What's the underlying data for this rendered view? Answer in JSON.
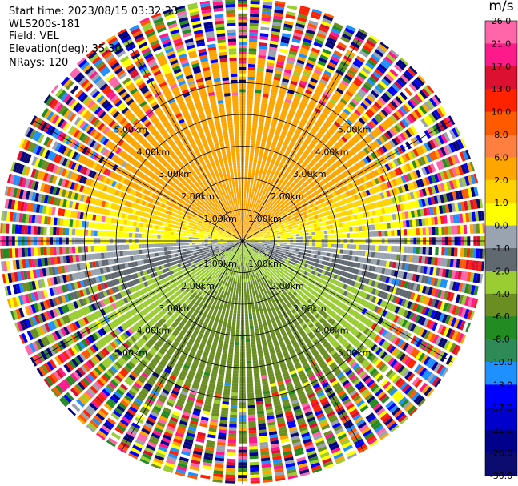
{
  "header": {
    "start_time_label": "Start time:",
    "start_time": "2023/08/15 03:32:33",
    "instrument": "WLS200s-181",
    "field_label": "Field:",
    "field": "VEL",
    "elevation_label": "Elevation(deg):",
    "elevation": "35.30",
    "nrays_label": "NRays:",
    "nrays": "120"
  },
  "chart_data": {
    "type": "heatmap",
    "projection": "polar PPI",
    "field": "VEL",
    "units": "m/s",
    "nrays": 120,
    "range_rings_km": [
      1.0,
      2.0,
      3.0,
      4.0,
      5.0
    ],
    "ring_labels": [
      "1.00km",
      "2.00km",
      "3.00km",
      "4.00km",
      "5.00km"
    ],
    "spokes_deg": [
      0,
      30,
      60,
      90,
      120,
      150,
      180,
      210,
      240,
      270,
      300,
      330
    ],
    "max_range_km": 7.7,
    "colorbar": {
      "title": "m/s",
      "ticks": [
        "26.0",
        "21.0",
        "17.0",
        "13.0",
        "10.0",
        "8.0",
        "6.0",
        "2.0",
        "1.0",
        "0.0",
        "-1.0",
        "-2.0",
        "-4.0",
        "-6.0",
        "-8.0",
        "-10.0",
        "-13.0",
        "-17.0",
        "-21.0",
        "-26.0",
        "-30.0"
      ],
      "colors": [
        "#ff66aa",
        "#ff1a8c",
        "#dc1030",
        "#ff2200",
        "#ff5a00",
        "#ff7f40",
        "#ffa500",
        "#ffd200",
        "#ffff00",
        "#9aa4b0",
        "#606870",
        "#9acd32",
        "#6b8e23",
        "#228b22",
        "#2e8b57",
        "#1e90ff",
        "#0000ff",
        "#0000cd",
        "#00008b",
        "#0b0b70"
      ]
    },
    "wind_pattern": {
      "toward_sector_azimuth_deg": 0,
      "toward_velocity_near_ms": 5.0,
      "away_sector_azimuth_deg": 180,
      "away_velocity_near_ms": -5.5,
      "clean_data_limit_km": 5.5
    }
  }
}
